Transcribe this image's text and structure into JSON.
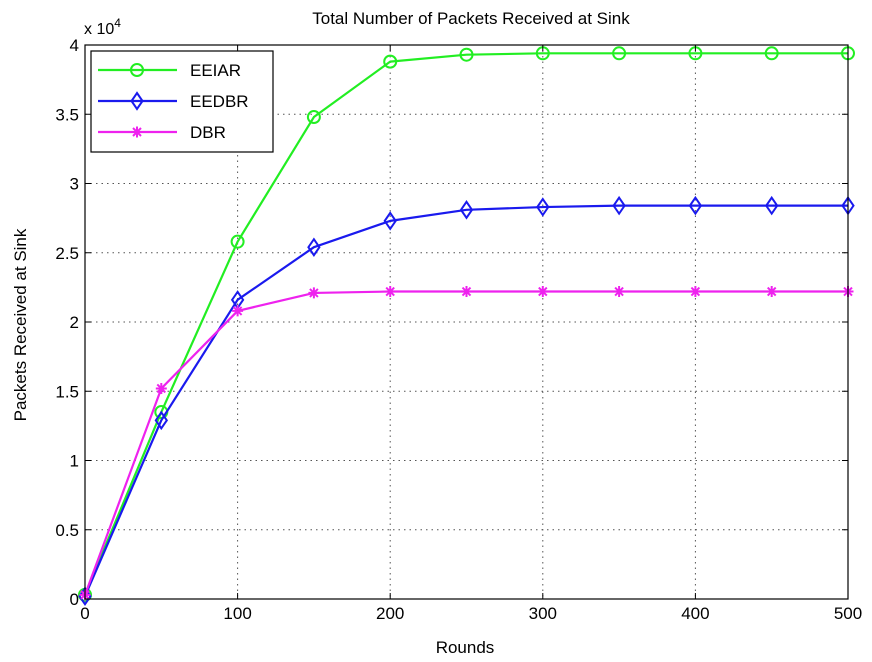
{
  "chart_data": {
    "type": "line",
    "title": "Total Number of Packets Received at Sink",
    "xlabel": "Rounds",
    "ylabel": "Packets Received at Sink",
    "y_multiplier_base": "x 10",
    "y_multiplier_exponent": "4",
    "xlim": [
      0,
      500
    ],
    "ylim": [
      0,
      4
    ],
    "xticks": [
      0,
      100,
      200,
      300,
      400,
      500
    ],
    "yticks": [
      0,
      0.5,
      1,
      1.5,
      2,
      2.5,
      3,
      3.5,
      4
    ],
    "xtick_labels": [
      "0",
      "100",
      "200",
      "300",
      "400",
      "500"
    ],
    "ytick_labels": [
      "0",
      "0.5",
      "1",
      "1.5",
      "2",
      "2.5",
      "3",
      "3.5",
      "4"
    ],
    "grid": true,
    "legend_position": "top-left",
    "x": [
      0,
      50,
      100,
      150,
      200,
      250,
      300,
      350,
      400,
      450,
      500
    ],
    "series": [
      {
        "name": "EEIAR",
        "color": "#22ee22",
        "marker": "circle",
        "values": [
          0.03,
          1.35,
          2.58,
          3.48,
          3.88,
          3.93,
          3.94,
          3.94,
          3.94,
          3.94,
          3.94
        ]
      },
      {
        "name": "EEDBR",
        "color": "#1a1aee",
        "marker": "diamond",
        "values": [
          0.02,
          1.29,
          2.16,
          2.54,
          2.73,
          2.81,
          2.83,
          2.84,
          2.84,
          2.84,
          2.84
        ]
      },
      {
        "name": "DBR",
        "color": "#ee22ee",
        "marker": "asterisk",
        "values": [
          0.03,
          1.52,
          2.08,
          2.21,
          2.22,
          2.22,
          2.22,
          2.22,
          2.22,
          2.22,
          2.22
        ]
      }
    ]
  }
}
